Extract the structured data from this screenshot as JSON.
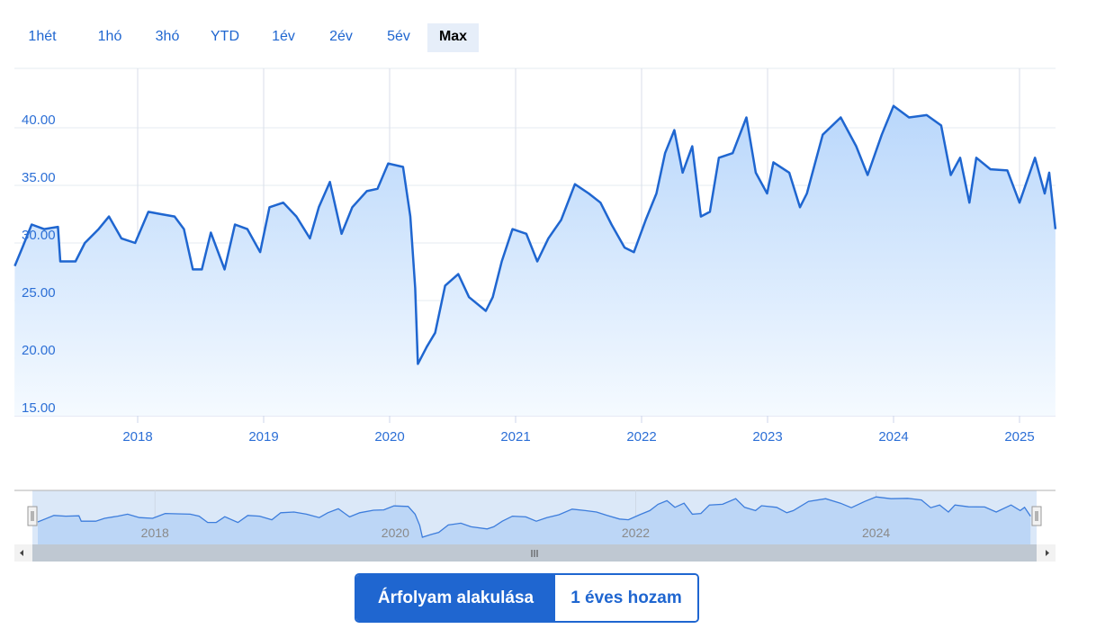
{
  "range_selector": {
    "buttons": [
      "1hét",
      "1hó",
      "3hó",
      "YTD",
      "1év",
      "2év",
      "5év",
      "Max"
    ],
    "active": "Max"
  },
  "toggle": {
    "price_label": "Árfolyam alakulása",
    "return_label": "1 éves hozam",
    "active": "Árfolyam alakulása"
  },
  "colors": {
    "line": "#1f66d0",
    "fill_top": "#b9d7fb",
    "fill_bottom": "#f5faff",
    "active_button": "#1f66d0"
  },
  "chart_data": {
    "type": "area",
    "xlabel": "",
    "ylabel": "",
    "ylim": [
      15,
      45
    ],
    "xlim": [
      "2017-01-10",
      "2025-04-20"
    ],
    "y_ticks": [
      "15.00",
      "20.00",
      "25.00",
      "30.00",
      "35.00",
      "40.00"
    ],
    "x_ticks": [
      "2018",
      "2019",
      "2020",
      "2021",
      "2022",
      "2023",
      "2024",
      "2025"
    ],
    "navigator_ticks": [
      "2018",
      "2020",
      "2022",
      "2024"
    ],
    "grid": true,
    "legend": "none",
    "points": [
      [
        "2017-01-10",
        28.0
      ],
      [
        "2017-02-01",
        29.6
      ],
      [
        "2017-02-28",
        31.6
      ],
      [
        "2017-04-05",
        31.2
      ],
      [
        "2017-05-15",
        31.4
      ],
      [
        "2017-05-22",
        28.4
      ],
      [
        "2017-07-05",
        28.4
      ],
      [
        "2017-08-01",
        30.0
      ],
      [
        "2017-09-10",
        31.2
      ],
      [
        "2017-10-10",
        32.3
      ],
      [
        "2017-11-15",
        30.4
      ],
      [
        "2017-12-25",
        30.0
      ],
      [
        "2018-02-01",
        32.7
      ],
      [
        "2018-03-10",
        32.5
      ],
      [
        "2018-04-18",
        32.3
      ],
      [
        "2018-05-15",
        31.2
      ],
      [
        "2018-06-10",
        27.7
      ],
      [
        "2018-07-06",
        27.7
      ],
      [
        "2018-08-01",
        30.9
      ],
      [
        "2018-09-10",
        27.7
      ],
      [
        "2018-10-10",
        31.6
      ],
      [
        "2018-11-15",
        31.2
      ],
      [
        "2018-12-22",
        29.2
      ],
      [
        "2019-01-18",
        33.1
      ],
      [
        "2019-02-27",
        33.5
      ],
      [
        "2019-04-06",
        32.3
      ],
      [
        "2019-05-15",
        30.4
      ],
      [
        "2019-06-10",
        33.1
      ],
      [
        "2019-07-12",
        35.3
      ],
      [
        "2019-08-15",
        30.8
      ],
      [
        "2019-09-15",
        33.1
      ],
      [
        "2019-10-27",
        34.5
      ],
      [
        "2019-11-27",
        34.7
      ],
      [
        "2019-12-28",
        36.9
      ],
      [
        "2020-02-09",
        36.6
      ],
      [
        "2020-03-01",
        32.3
      ],
      [
        "2020-03-15",
        26.1
      ],
      [
        "2020-03-23",
        19.5
      ],
      [
        "2020-04-18",
        21.0
      ],
      [
        "2020-05-12",
        22.2
      ],
      [
        "2020-06-10",
        26.3
      ],
      [
        "2020-07-18",
        27.3
      ],
      [
        "2020-08-18",
        25.3
      ],
      [
        "2020-10-06",
        24.1
      ],
      [
        "2020-10-26",
        25.3
      ],
      [
        "2020-11-21",
        28.4
      ],
      [
        "2020-12-22",
        31.2
      ],
      [
        "2021-02-01",
        30.8
      ],
      [
        "2021-03-05",
        28.4
      ],
      [
        "2021-04-06",
        30.4
      ],
      [
        "2021-05-13",
        32.0
      ],
      [
        "2021-06-22",
        35.1
      ],
      [
        "2021-08-01",
        34.3
      ],
      [
        "2021-09-04",
        33.5
      ],
      [
        "2021-10-06",
        31.6
      ],
      [
        "2021-11-13",
        29.6
      ],
      [
        "2021-12-10",
        29.2
      ],
      [
        "2022-01-13",
        32.0
      ],
      [
        "2022-02-13",
        34.3
      ],
      [
        "2022-03-10",
        37.8
      ],
      [
        "2022-04-06",
        39.8
      ],
      [
        "2022-04-30",
        36.1
      ],
      [
        "2022-05-28",
        38.4
      ],
      [
        "2022-06-22",
        32.3
      ],
      [
        "2022-07-18",
        32.7
      ],
      [
        "2022-08-13",
        37.4
      ],
      [
        "2022-09-22",
        37.8
      ],
      [
        "2022-11-01",
        40.9
      ],
      [
        "2022-11-28",
        36.1
      ],
      [
        "2022-12-31",
        34.3
      ],
      [
        "2023-01-18",
        37.0
      ],
      [
        "2023-03-05",
        36.1
      ],
      [
        "2023-04-05",
        33.1
      ],
      [
        "2023-04-25",
        34.3
      ],
      [
        "2023-06-10",
        39.4
      ],
      [
        "2023-08-01",
        40.9
      ],
      [
        "2023-09-15",
        38.4
      ],
      [
        "2023-10-18",
        35.9
      ],
      [
        "2023-11-28",
        39.4
      ],
      [
        "2024-01-01",
        41.9
      ],
      [
        "2024-02-15",
        40.9
      ],
      [
        "2024-04-06",
        41.1
      ],
      [
        "2024-05-18",
        40.2
      ],
      [
        "2024-06-15",
        35.9
      ],
      [
        "2024-07-12",
        37.4
      ],
      [
        "2024-08-08",
        33.5
      ],
      [
        "2024-08-28",
        37.4
      ],
      [
        "2024-10-08",
        36.4
      ],
      [
        "2024-11-26",
        36.3
      ],
      [
        "2025-01-01",
        33.5
      ],
      [
        "2025-02-15",
        37.4
      ],
      [
        "2025-03-15",
        34.3
      ],
      [
        "2025-03-28",
        36.1
      ],
      [
        "2025-04-15",
        31.2
      ]
    ]
  }
}
